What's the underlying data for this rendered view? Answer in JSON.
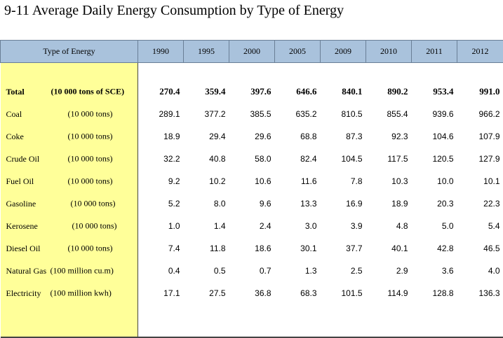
{
  "title": "9-11  Average Daily Energy Consumption by Type of Energy",
  "header": {
    "label": "Type of Energy",
    "years": [
      "1990",
      "1995",
      "2000",
      "2005",
      "2009",
      "2010",
      "2011",
      "2012"
    ]
  },
  "rows": [
    {
      "name": "Total",
      "unit": "(10 000 tons of SCE)",
      "values": [
        "270.4",
        "359.4",
        "397.6",
        "646.6",
        "840.1",
        "890.2",
        "953.4",
        "991.0"
      ]
    },
    {
      "name": "Coal",
      "unit": "(10 000 tons)",
      "values": [
        "289.1",
        "377.2",
        "385.5",
        "635.2",
        "810.5",
        "855.4",
        "939.6",
        "966.2"
      ]
    },
    {
      "name": "Coke",
      "unit": "(10 000 tons)",
      "values": [
        "18.9",
        "29.4",
        "29.6",
        "68.8",
        "87.3",
        "92.3",
        "104.6",
        "107.9"
      ]
    },
    {
      "name": "Crude Oil",
      "unit": "(10 000 tons)",
      "values": [
        "32.2",
        "40.8",
        "58.0",
        "82.4",
        "104.5",
        "117.5",
        "120.5",
        "127.9"
      ]
    },
    {
      "name": "Fuel Oil",
      "unit": "(10 000 tons)",
      "values": [
        "9.2",
        "10.2",
        "10.6",
        "11.6",
        "7.8",
        "10.3",
        "10.0",
        "10.1"
      ]
    },
    {
      "name": "Gasoline",
      "unit": "(10 000 tons)",
      "values": [
        "5.2",
        "8.0",
        "9.6",
        "13.3",
        "16.9",
        "18.9",
        "20.3",
        "22.3"
      ]
    },
    {
      "name": "Kerosene",
      "unit": "(10 000 tons)",
      "values": [
        "1.0",
        "1.4",
        "2.4",
        "3.0",
        "3.9",
        "4.8",
        "5.0",
        "5.4"
      ]
    },
    {
      "name": "Diesel Oil",
      "unit": "(10 000 tons)",
      "values": [
        "7.4",
        "11.8",
        "18.6",
        "30.1",
        "37.7",
        "40.1",
        "42.8",
        "46.5"
      ]
    },
    {
      "name": "Natural Gas",
      "unit": "(100 million cu.m)",
      "values": [
        "0.4",
        "0.5",
        "0.7",
        "1.3",
        "2.5",
        "2.9",
        "3.6",
        "4.0"
      ]
    },
    {
      "name": "Electricity",
      "unit": "(100 million kwh)",
      "values": [
        "17.1",
        "27.5",
        "36.8",
        "68.3",
        "101.5",
        "114.9",
        "128.8",
        "136.3"
      ]
    }
  ]
}
